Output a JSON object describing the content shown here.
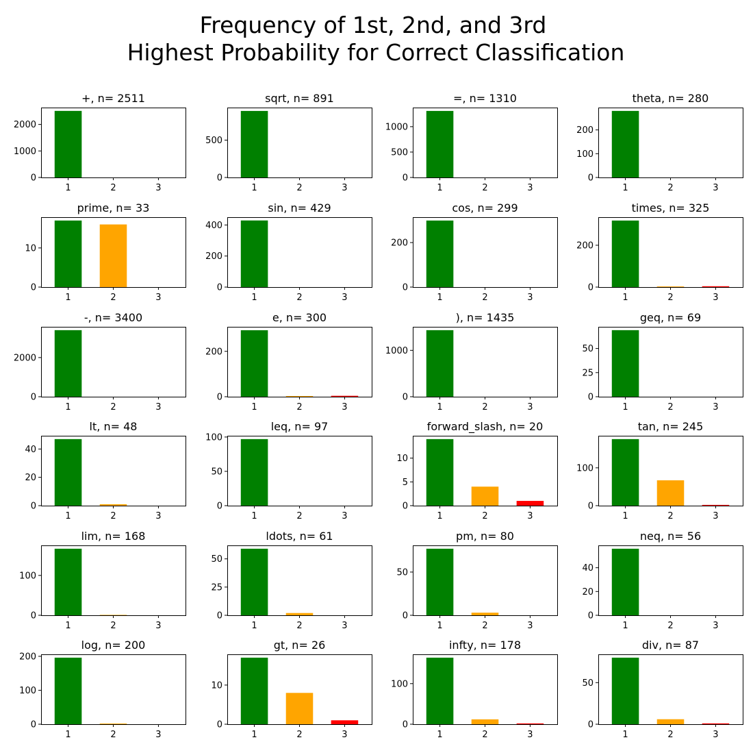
{
  "figure": {
    "title_lines": [
      "Frequency of 1st, 2nd, and 3rd",
      "Highest Probability for Correct Classification"
    ]
  },
  "colors": {
    "rank1": "#008000",
    "rank2": "#ffa500",
    "rank3": "#ff0000"
  },
  "chart_data": [
    {
      "type": "bar",
      "title": "+, n= 2511",
      "categories": [
        "1",
        "2",
        "3"
      ],
      "values": [
        2511,
        0,
        0
      ],
      "ylim": [
        0,
        2636
      ],
      "yticks": [
        0,
        1000,
        2000
      ]
    },
    {
      "type": "bar",
      "title": "sqrt, n= 891",
      "categories": [
        "1",
        "2",
        "3"
      ],
      "values": [
        891,
        0,
        0
      ],
      "ylim": [
        0,
        936
      ],
      "yticks": [
        0,
        500
      ]
    },
    {
      "type": "bar",
      "title": "=, n= 1310",
      "categories": [
        "1",
        "2",
        "3"
      ],
      "values": [
        1310,
        0,
        0
      ],
      "ylim": [
        0,
        1376
      ],
      "yticks": [
        0,
        500,
        1000
      ]
    },
    {
      "type": "bar",
      "title": "theta, n= 280",
      "categories": [
        "1",
        "2",
        "3"
      ],
      "values": [
        280,
        0,
        0
      ],
      "ylim": [
        0,
        294
      ],
      "yticks": [
        0,
        100,
        200
      ]
    },
    {
      "type": "bar",
      "title": "prime, n= 33",
      "categories": [
        "1",
        "2",
        "3"
      ],
      "values": [
        17,
        16,
        0
      ],
      "ylim": [
        0,
        17.85
      ],
      "yticks": [
        0,
        10
      ]
    },
    {
      "type": "bar",
      "title": "sin, n= 429",
      "categories": [
        "1",
        "2",
        "3"
      ],
      "values": [
        429,
        0,
        0
      ],
      "ylim": [
        0,
        450
      ],
      "yticks": [
        0,
        200,
        400
      ]
    },
    {
      "type": "bar",
      "title": "cos, n= 299",
      "categories": [
        "1",
        "2",
        "3"
      ],
      "values": [
        299,
        0,
        0
      ],
      "ylim": [
        0,
        314
      ],
      "yticks": [
        0,
        200
      ]
    },
    {
      "type": "bar",
      "title": "times, n= 325",
      "categories": [
        "1",
        "2",
        "3"
      ],
      "values": [
        318,
        3,
        4
      ],
      "ylim": [
        0,
        334
      ],
      "yticks": [
        0,
        200
      ]
    },
    {
      "type": "bar",
      "title": "-, n= 3400",
      "categories": [
        "1",
        "2",
        "3"
      ],
      "values": [
        3400,
        0,
        0
      ],
      "ylim": [
        0,
        3570
      ],
      "yticks": [
        0,
        2000
      ]
    },
    {
      "type": "bar",
      "title": "e, n= 300",
      "categories": [
        "1",
        "2",
        "3"
      ],
      "values": [
        293,
        3,
        4
      ],
      "ylim": [
        0,
        308
      ],
      "yticks": [
        0,
        200
      ]
    },
    {
      "type": "bar",
      "title": "), n= 1435",
      "categories": [
        "1",
        "2",
        "3"
      ],
      "values": [
        1435,
        0,
        0
      ],
      "ylim": [
        0,
        1507
      ],
      "yticks": [
        0,
        1000
      ]
    },
    {
      "type": "bar",
      "title": "geq, n= 69",
      "categories": [
        "1",
        "2",
        "3"
      ],
      "values": [
        69,
        0,
        0
      ],
      "ylim": [
        0,
        72.45
      ],
      "yticks": [
        0,
        25,
        50
      ]
    },
    {
      "type": "bar",
      "title": "lt, n= 48",
      "categories": [
        "1",
        "2",
        "3"
      ],
      "values": [
        47,
        1,
        0
      ],
      "ylim": [
        0,
        49.35
      ],
      "yticks": [
        0,
        20,
        40
      ]
    },
    {
      "type": "bar",
      "title": "leq, n= 97",
      "categories": [
        "1",
        "2",
        "3"
      ],
      "values": [
        97,
        0,
        0
      ],
      "ylim": [
        0,
        101.85
      ],
      "yticks": [
        0,
        50,
        100
      ]
    },
    {
      "type": "bar",
      "title": "forward_slash, n= 20",
      "categories": [
        "1",
        "2",
        "3"
      ],
      "values": [
        14,
        4,
        1
      ],
      "ylim": [
        0,
        14.7
      ],
      "yticks": [
        0,
        5,
        10
      ]
    },
    {
      "type": "bar",
      "title": "tan, n= 245",
      "categories": [
        "1",
        "2",
        "3"
      ],
      "values": [
        176,
        67,
        2
      ],
      "ylim": [
        0,
        184.8
      ],
      "yticks": [
        0,
        100
      ]
    },
    {
      "type": "bar",
      "title": "lim, n= 168",
      "categories": [
        "1",
        "2",
        "3"
      ],
      "values": [
        167,
        1,
        0
      ],
      "ylim": [
        0,
        175.35
      ],
      "yticks": [
        0,
        100
      ]
    },
    {
      "type": "bar",
      "title": "ldots, n= 61",
      "categories": [
        "1",
        "2",
        "3"
      ],
      "values": [
        59,
        2,
        0
      ],
      "ylim": [
        0,
        61.95
      ],
      "yticks": [
        0,
        25,
        50
      ]
    },
    {
      "type": "bar",
      "title": "pm, n= 80",
      "categories": [
        "1",
        "2",
        "3"
      ],
      "values": [
        77,
        3,
        0
      ],
      "ylim": [
        0,
        80.85
      ],
      "yticks": [
        0,
        50
      ]
    },
    {
      "type": "bar",
      "title": "neq, n= 56",
      "categories": [
        "1",
        "2",
        "3"
      ],
      "values": [
        56,
        0,
        0
      ],
      "ylim": [
        0,
        58.8
      ],
      "yticks": [
        0,
        20,
        40
      ]
    },
    {
      "type": "bar",
      "title": "log, n= 200",
      "categories": [
        "1",
        "2",
        "3"
      ],
      "values": [
        196,
        2,
        0
      ],
      "ylim": [
        0,
        205.8
      ],
      "yticks": [
        0,
        100,
        200
      ]
    },
    {
      "type": "bar",
      "title": "gt, n= 26",
      "categories": [
        "1",
        "2",
        "3"
      ],
      "values": [
        17,
        8,
        1
      ],
      "ylim": [
        0,
        17.85
      ],
      "yticks": [
        0,
        10
      ]
    },
    {
      "type": "bar",
      "title": "infty, n= 178",
      "categories": [
        "1",
        "2",
        "3"
      ],
      "values": [
        164,
        12,
        2
      ],
      "ylim": [
        0,
        172.2
      ],
      "yticks": [
        0,
        100
      ]
    },
    {
      "type": "bar",
      "title": "div, n= 87",
      "categories": [
        "1",
        "2",
        "3"
      ],
      "values": [
        80,
        6,
        1
      ],
      "ylim": [
        0,
        84
      ],
      "yticks": [
        0,
        50
      ]
    }
  ]
}
